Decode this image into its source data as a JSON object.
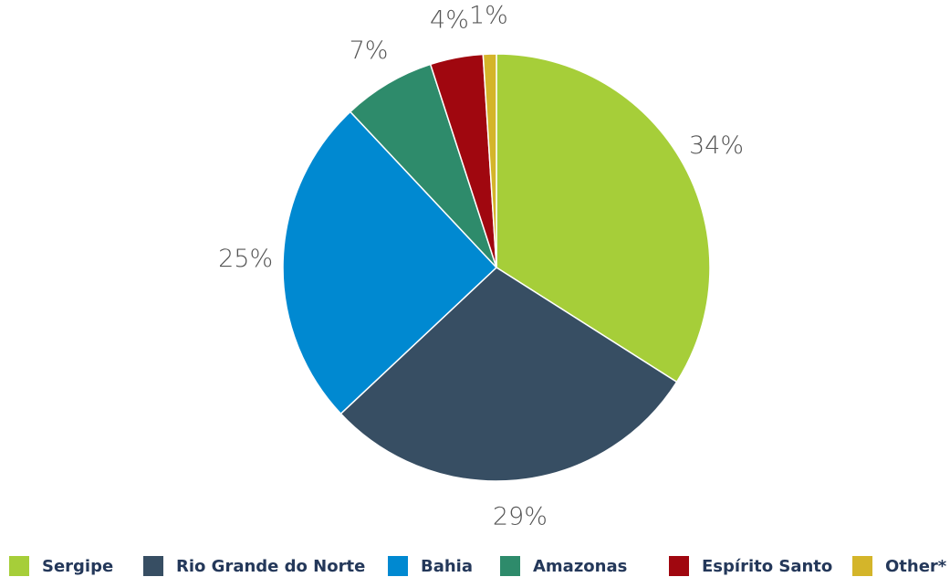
{
  "chart_data": {
    "type": "pie",
    "categories": [
      "Sergipe",
      "Rio Grande do Norte",
      "Bahia",
      "Amazonas",
      "Espírito Santo",
      "Other*"
    ],
    "values": [
      34,
      29,
      25,
      7,
      4,
      1
    ],
    "value_labels": [
      "34%",
      "29%",
      "25%",
      "7%",
      "4%",
      "1%"
    ],
    "colors": [
      "#a6ce39",
      "#374e63",
      "#0089d1",
      "#2e8b6b",
      "#a0070f",
      "#d4b52a"
    ]
  }
}
